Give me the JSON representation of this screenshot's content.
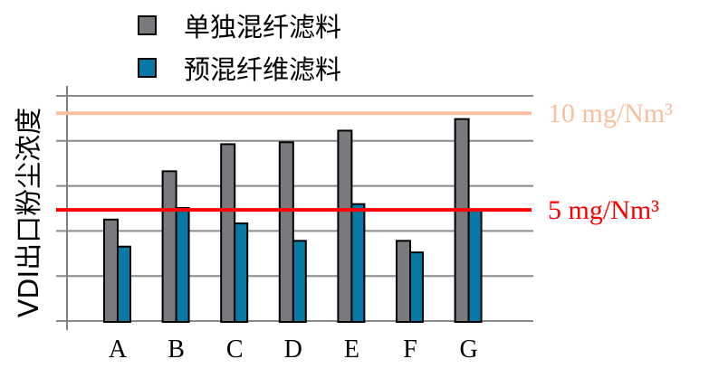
{
  "chart_data": {
    "type": "bar",
    "title": "",
    "xlabel": "",
    "ylabel": "VDI出口粉尘浓度",
    "ylim": [
      -0.75,
      10.9
    ],
    "grid": true,
    "legend_position": "top",
    "categories": [
      "A",
      "B",
      "C",
      "D",
      "E",
      "F",
      "G"
    ],
    "series": [
      {
        "name": "单独混纤滤料",
        "color": "#7a7a7e",
        "values": [
          4.5,
          7.0,
          8.4,
          8.5,
          9.1,
          3.4,
          9.7
        ]
      },
      {
        "name": "预混纤维滤料",
        "color": "#0779a4",
        "values": [
          3.1,
          5.1,
          4.3,
          3.4,
          5.3,
          2.8,
          5.0
        ]
      }
    ],
    "reference_lines": [
      {
        "value": 10,
        "label": "10 mg/Nm³",
        "color": "#f8c0a0"
      },
      {
        "value": 5,
        "label": "5 mg/Nm³",
        "color": "#ff0000"
      }
    ]
  }
}
